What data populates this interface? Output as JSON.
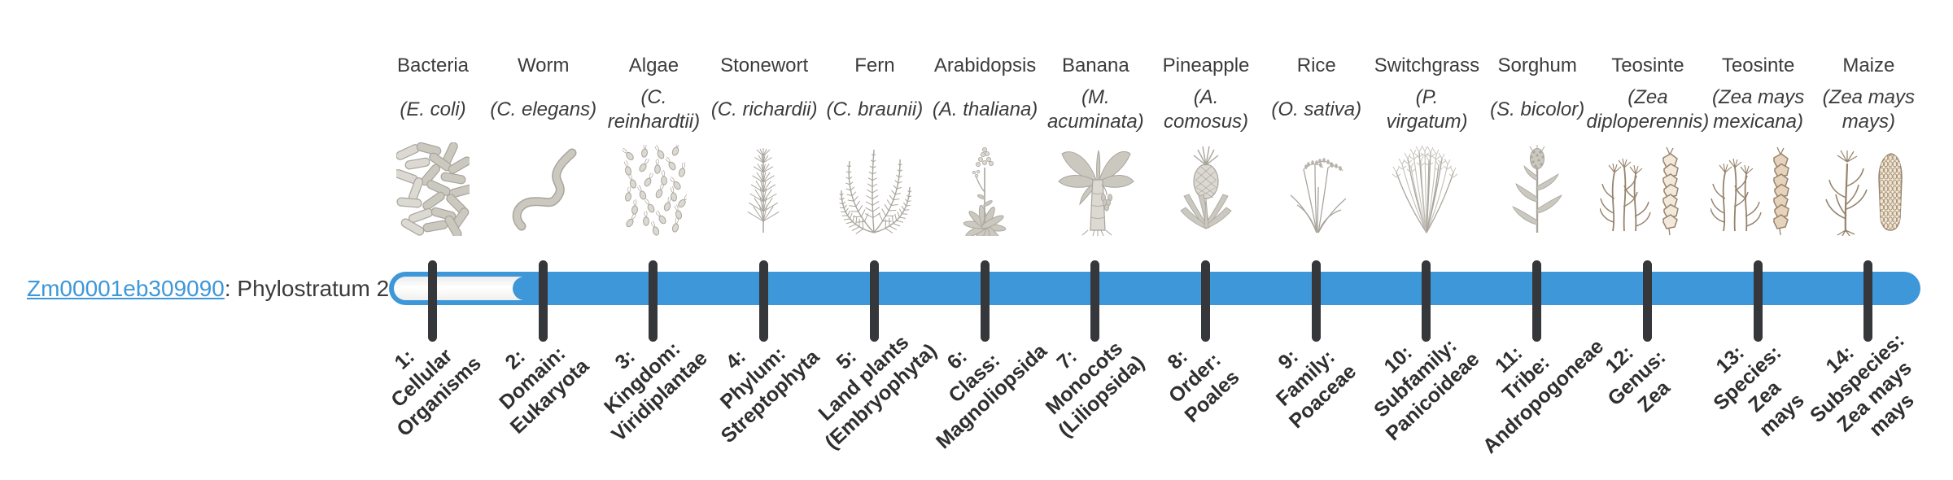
{
  "gene": {
    "id_link": "Zm00001eb309090",
    "stratum_text": ": Phylostratum 2",
    "phylostratum": 2
  },
  "timeline": {
    "num_strata": 14,
    "filled_from_stratum": 2,
    "bar_color": "#3e97d8",
    "tick_color": "#35373a",
    "link_color": "#3e97d8",
    "text_color": "#3c3c3c"
  },
  "organisms": [
    {
      "common": "Bacteria",
      "species": "(E. coli)",
      "icon": "bacteria-icon",
      "stratum_label": "1:\nCellular\nOrganisms"
    },
    {
      "common": "Worm",
      "species": "(C. elegans)",
      "icon": "worm-icon",
      "stratum_label": "2:\nDomain:\nEukaryota"
    },
    {
      "common": "Algae",
      "species": "(C.\nreinhardtii)",
      "icon": "algae-icon",
      "stratum_label": "3:\nKingdom:\nViridiplantae"
    },
    {
      "common": "Stonewort",
      "species": "(C. richardii)",
      "icon": "stonewort-icon",
      "stratum_label": "4:\nPhylum:\nStreptophyta"
    },
    {
      "common": "Fern",
      "species": "(C. braunii)",
      "icon": "fern-icon",
      "stratum_label": "5:\nLand plants\n(Embryophyta)"
    },
    {
      "common": "Arabidopsis",
      "species": "(A. thaliana)",
      "icon": "arabidopsis-icon",
      "stratum_label": "6:\nClass:\nMagnoliopsida"
    },
    {
      "common": "Banana",
      "species": "(M.\nacuminata)",
      "icon": "banana-icon",
      "stratum_label": "7:\nMonocots\n(Liliopsida)"
    },
    {
      "common": "Pineapple",
      "species": "(A.\ncomosus)",
      "icon": "pineapple-icon",
      "stratum_label": "8:\nOrder:\nPoales"
    },
    {
      "common": "Rice",
      "species": "(O. sativa)",
      "icon": "rice-icon",
      "stratum_label": "9:\nFamily:\nPoaceae"
    },
    {
      "common": "Switchgrass",
      "species": "(P.\nvirgatum)",
      "icon": "switchgrass-icon",
      "stratum_label": "10:\nSubfamily:\nPanicoideae"
    },
    {
      "common": "Sorghum",
      "species": "(S. bicolor)",
      "icon": "sorghum-icon",
      "stratum_label": "11:\nTribe:\nAndropogoneae"
    },
    {
      "common": "Teosinte",
      "species": "(Zea\ndiploperennis)",
      "icon": "teosinte-diploperennis-icon",
      "stratum_label": "12:\nGenus:\nZea"
    },
    {
      "common": "Teosinte",
      "species": "(Zea mays\nmexicana)",
      "icon": "teosinte-mexicana-icon",
      "stratum_label": "13:\nSpecies:\nZea\nmays"
    },
    {
      "common": "Maize",
      "species": "(Zea mays\nmays)",
      "icon": "maize-icon",
      "stratum_label": "14:\nSubspecies:\nZea mays\nmays"
    }
  ]
}
